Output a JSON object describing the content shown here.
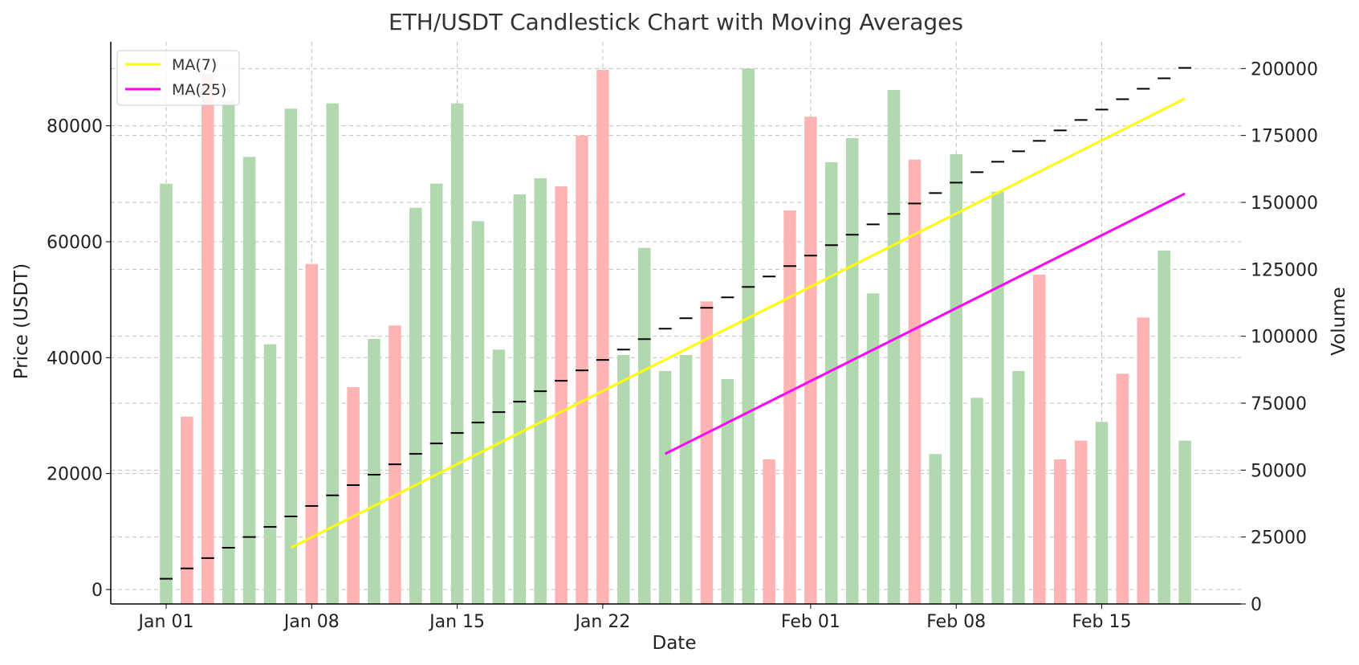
{
  "chart_data": {
    "type": "candlestick",
    "title": "ETH/USDT Candlestick Chart with Moving Averages",
    "xlabel": "Date",
    "ylabel": "Price (USDT)",
    "y2label": "Volume",
    "x": [
      "Jan 01",
      "Jan 02",
      "Jan 03",
      "Jan 04",
      "Jan 05",
      "Jan 06",
      "Jan 07",
      "Jan 08",
      "Jan 09",
      "Jan 10",
      "Jan 11",
      "Jan 12",
      "Jan 13",
      "Jan 14",
      "Jan 15",
      "Jan 16",
      "Jan 17",
      "Jan 18",
      "Jan 19",
      "Jan 20",
      "Jan 21",
      "Jan 22",
      "Jan 23",
      "Jan 24",
      "Jan 25",
      "Jan 26",
      "Jan 27",
      "Jan 28",
      "Jan 29",
      "Jan 30",
      "Jan 31",
      "Feb 01",
      "Feb 02",
      "Feb 03",
      "Feb 04",
      "Feb 05",
      "Feb 06",
      "Feb 07",
      "Feb 08",
      "Feb 09",
      "Feb 10",
      "Feb 11",
      "Feb 12",
      "Feb 13",
      "Feb 14",
      "Feb 15",
      "Feb 16",
      "Feb 17",
      "Feb 18",
      "Feb 19"
    ],
    "xticks": [
      "Jan 01",
      "Jan 08",
      "Jan 15",
      "Jan 22",
      "Feb 01",
      "Feb 08",
      "Feb 15"
    ],
    "yticks": [
      0,
      20000,
      40000,
      60000,
      80000
    ],
    "y2ticks": [
      0,
      25000,
      50000,
      75000,
      100000,
      125000,
      150000,
      175000,
      200000
    ],
    "ylim": [
      -2500,
      94500
    ],
    "y2lim": [
      0,
      210000
    ],
    "close": [
      1850,
      3640,
      5420,
      7200,
      9050,
      10800,
      12600,
      14400,
      16250,
      18000,
      19800,
      21600,
      23400,
      25200,
      27000,
      28800,
      30600,
      32400,
      34200,
      36000,
      37800,
      39600,
      41400,
      43200,
      45000,
      46800,
      48600,
      50400,
      52200,
      54000,
      55800,
      57600,
      59400,
      61200,
      63000,
      64800,
      66600,
      68400,
      70200,
      72000,
      73800,
      75600,
      77400,
      79200,
      81000,
      82800,
      84600,
      86400,
      88200,
      90000
    ],
    "volume": [
      157000,
      70000,
      198000,
      188000,
      167000,
      97000,
      185000,
      127000,
      187000,
      81000,
      99000,
      104000,
      148000,
      157000,
      187000,
      143000,
      95000,
      153000,
      159000,
      156000,
      175000,
      199500,
      93000,
      133000,
      87000,
      93000,
      113000,
      84000,
      200000,
      54000,
      147000,
      182000,
      165000,
      174000,
      116000,
      192000,
      166000,
      56000,
      168000,
      77000,
      154000,
      87000,
      123000,
      54000,
      61000,
      68000,
      86000,
      107000,
      132000,
      61000
    ],
    "volume_up": [
      true,
      false,
      false,
      true,
      true,
      true,
      true,
      false,
      true,
      false,
      true,
      false,
      true,
      true,
      true,
      true,
      true,
      true,
      true,
      false,
      false,
      false,
      true,
      true,
      true,
      true,
      false,
      true,
      true,
      false,
      false,
      false,
      true,
      true,
      true,
      true,
      false,
      true,
      true,
      true,
      true,
      true,
      false,
      false,
      false,
      true,
      false,
      false,
      true,
      true
    ],
    "series": [
      {
        "name": "MA(7)",
        "color": "#ffff00",
        "start_index": 6,
        "start_value": 7200,
        "end_value": 84700
      },
      {
        "name": "MA(25)",
        "color": "#ff00ff",
        "start_index": 24,
        "start_value": 23400,
        "end_value": 68300
      }
    ],
    "colors": {
      "up_volume": "#b2d8b0",
      "down_volume": "#ffb3b3",
      "tick": "#000000"
    },
    "grid": true,
    "legend_position": "top-left"
  }
}
